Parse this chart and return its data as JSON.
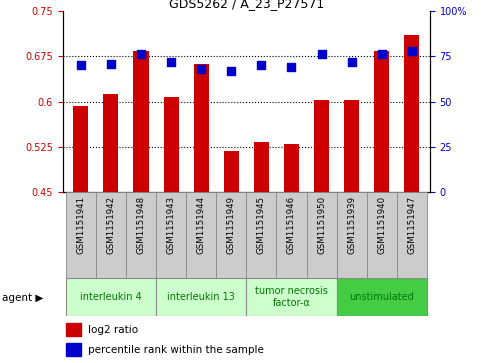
{
  "title": "GDS5262 / A_23_P27571",
  "samples": [
    "GSM1151941",
    "GSM1151942",
    "GSM1151948",
    "GSM1151943",
    "GSM1151944",
    "GSM1151949",
    "GSM1151945",
    "GSM1151946",
    "GSM1151950",
    "GSM1151939",
    "GSM1151940",
    "GSM1151947"
  ],
  "log2_ratio": [
    0.592,
    0.612,
    0.683,
    0.607,
    0.663,
    0.518,
    0.533,
    0.53,
    0.603,
    0.603,
    0.683,
    0.71
  ],
  "percentile_rank": [
    70,
    71,
    76,
    72,
    68,
    67,
    70,
    69,
    76,
    72,
    76,
    78
  ],
  "ylim_left": [
    0.45,
    0.75
  ],
  "ylim_right": [
    0,
    100
  ],
  "yticks_left": [
    0.45,
    0.525,
    0.6,
    0.675,
    0.75
  ],
  "ytick_labels_left": [
    "0.45",
    "0.525",
    "0.6",
    "0.675",
    "0.75"
  ],
  "yticks_right": [
    0,
    25,
    50,
    75,
    100
  ],
  "ytick_labels_right": [
    "0",
    "25",
    "50",
    "75",
    "100%"
  ],
  "bar_color": "#cc0000",
  "dot_color": "#0000cc",
  "agent_groups": [
    {
      "label": "interleukin 4",
      "start": 0,
      "end": 3,
      "color": "#ccffcc"
    },
    {
      "label": "interleukin 13",
      "start": 3,
      "end": 6,
      "color": "#ccffcc"
    },
    {
      "label": "tumor necrosis\nfactor-α",
      "start": 6,
      "end": 9,
      "color": "#ccffcc"
    },
    {
      "label": "unstimulated",
      "start": 9,
      "end": 12,
      "color": "#44cc44"
    }
  ],
  "agent_label": "agent",
  "legend_log2": "log2 ratio",
  "legend_pct": "percentile rank within the sample",
  "grid_lines": [
    0.525,
    0.6,
    0.675
  ],
  "background_color": "#ffffff",
  "tick_label_color_left": "#cc0000",
  "tick_label_color_right": "#0000cc",
  "bar_width": 0.5,
  "dot_size": 28,
  "sample_box_color": "#cccccc",
  "sample_box_edge": "#888888",
  "agent_text_color": "#007700"
}
